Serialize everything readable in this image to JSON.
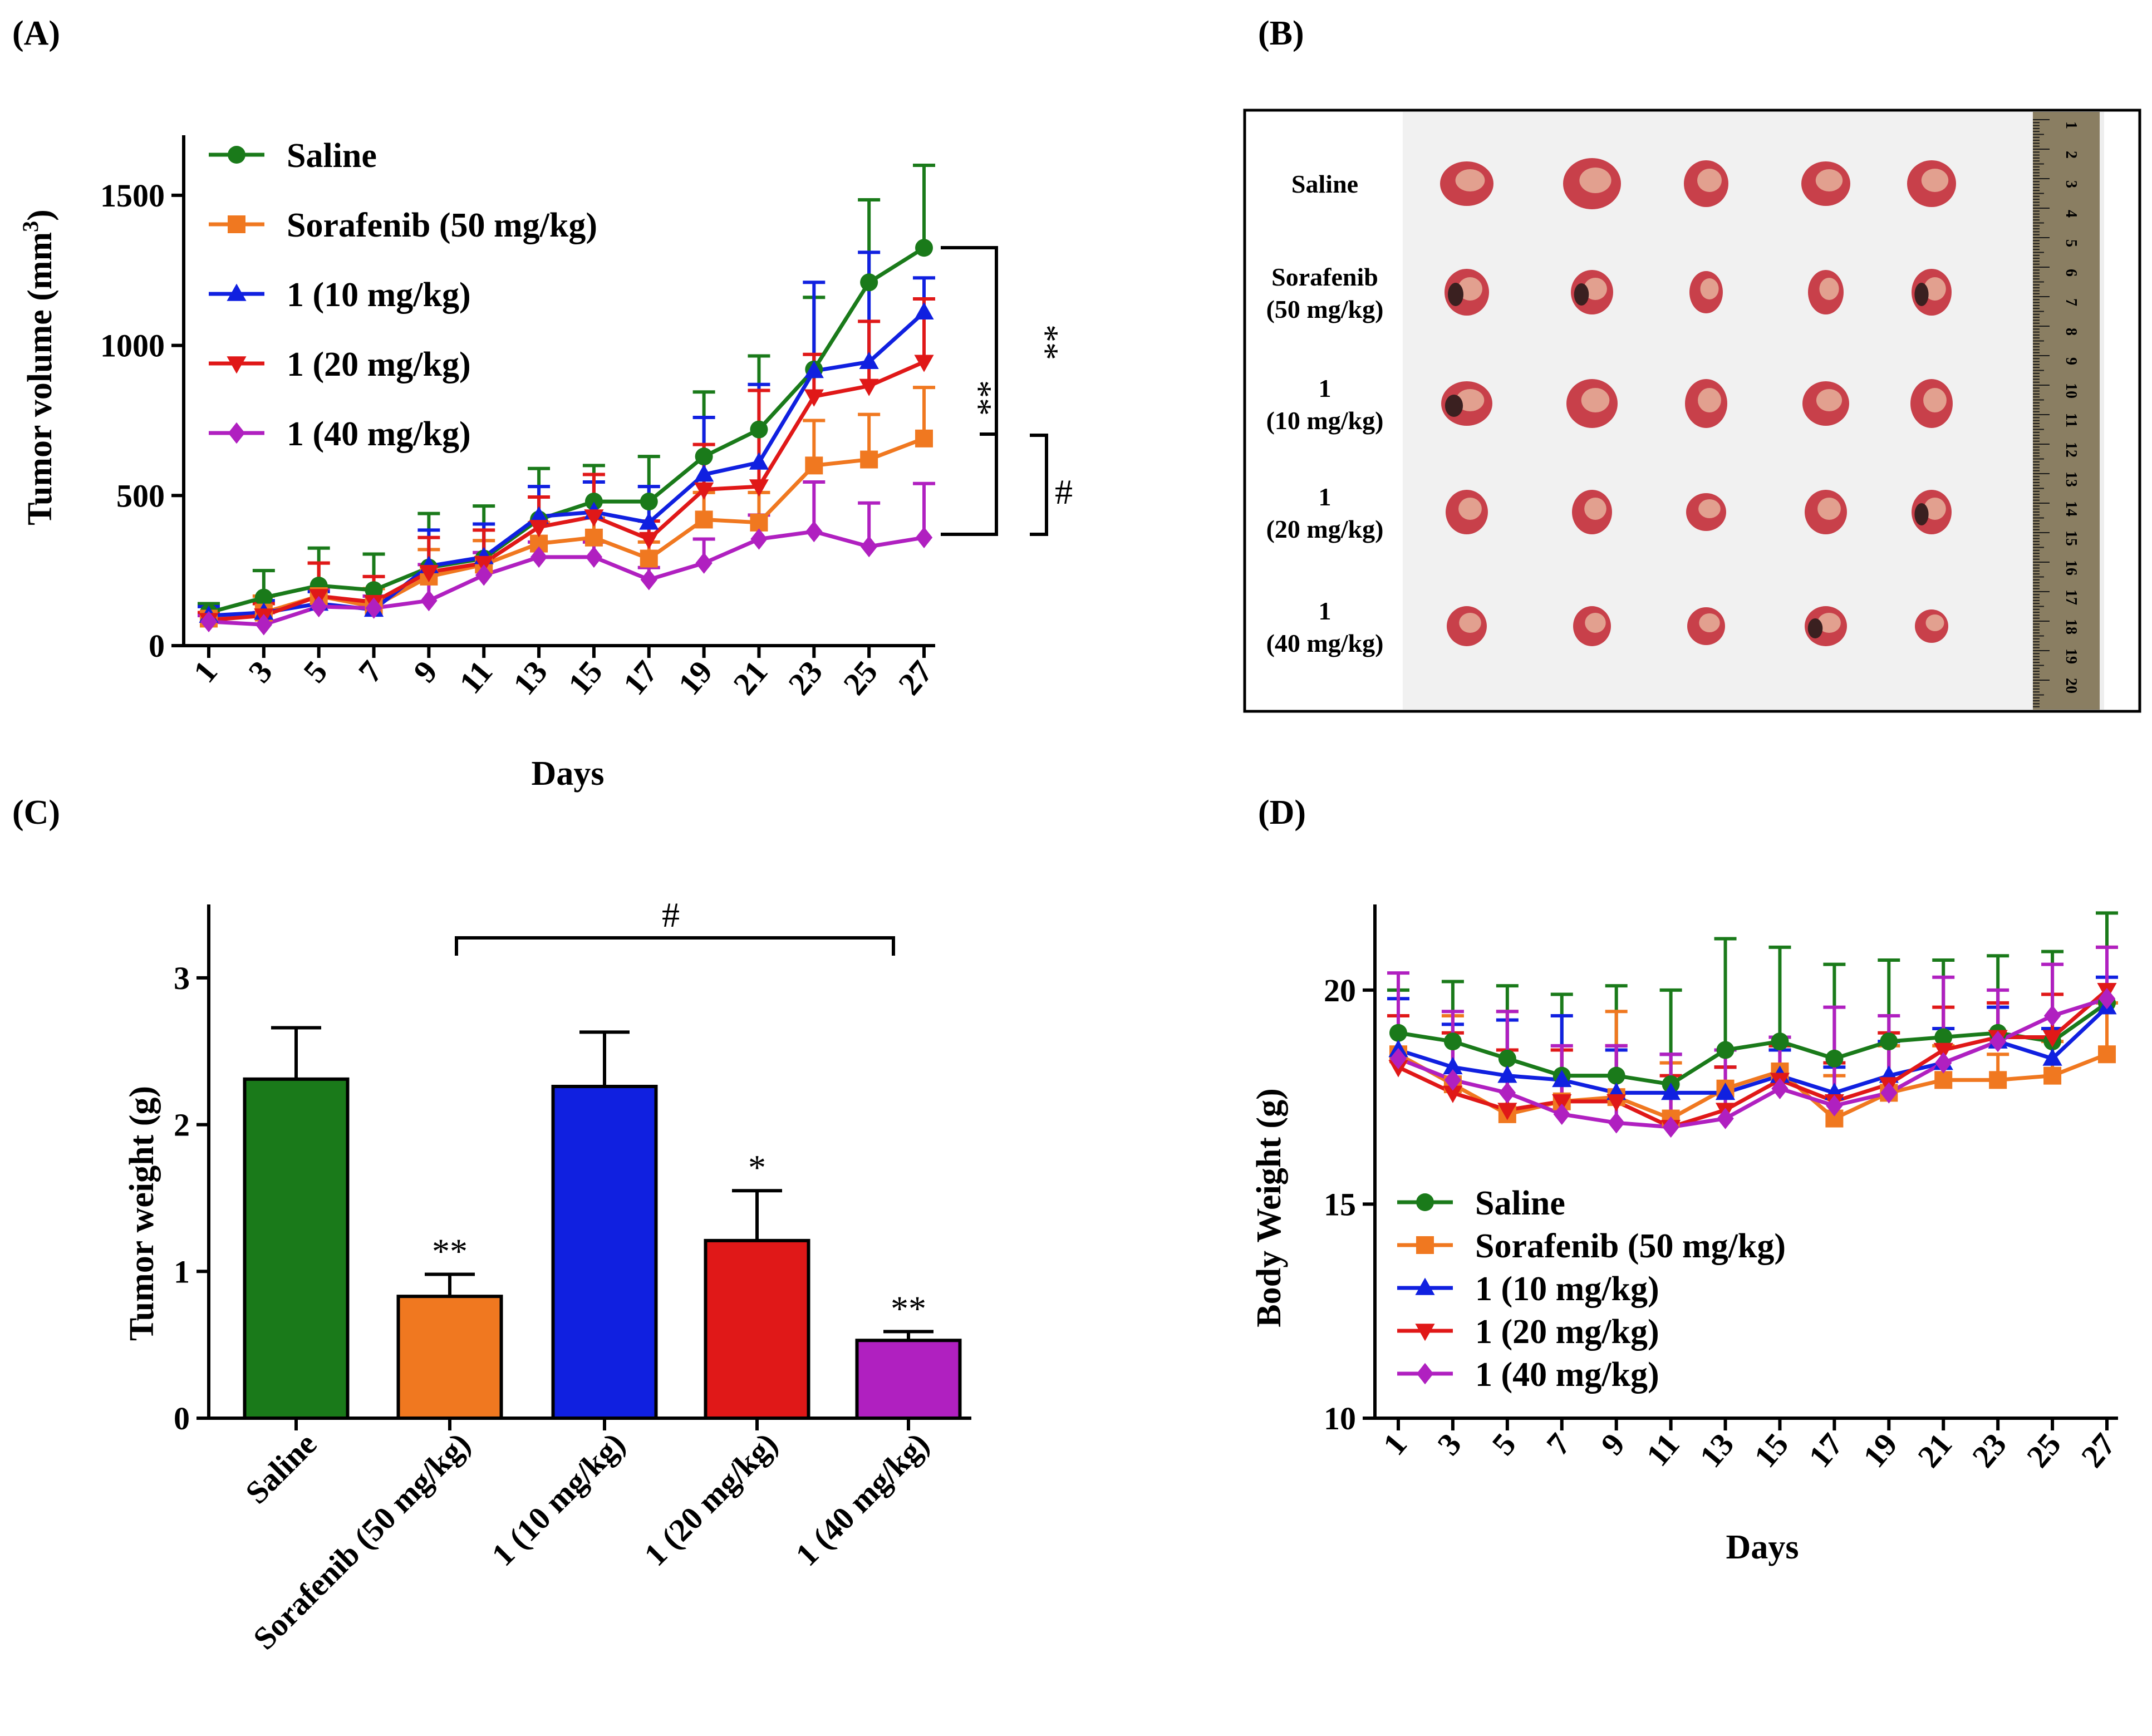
{
  "panels": {
    "a": "(A)",
    "b": "(B)",
    "c": "(C)",
    "d": "(D)"
  },
  "legend": [
    {
      "name": "Saline",
      "color": "#1a7a1a",
      "marker": "circle"
    },
    {
      "name": "Sorafenib (50 mg/kg)",
      "color": "#f07820",
      "marker": "square"
    },
    {
      "name": "1 (10 mg/kg)",
      "color": "#1020e0",
      "marker": "triangle-up"
    },
    {
      "name": "1 (20 mg/kg)",
      "color": "#e01818",
      "marker": "triangle-down"
    },
    {
      "name": "1 (40 mg/kg)",
      "color": "#b020c0",
      "marker": "diamond"
    }
  ],
  "photo": {
    "row_labels": [
      [
        "Saline"
      ],
      [
        "Sorafenib",
        "(50 mg/kg)"
      ],
      [
        "1",
        "(10 mg/kg)"
      ],
      [
        "1",
        "(20 mg/kg)"
      ],
      [
        "1",
        "(40 mg/kg)"
      ]
    ],
    "ruler_numbers": [
      "1",
      "2",
      "3",
      "4",
      "5",
      "6",
      "7",
      "8",
      "9",
      "10",
      "11",
      "12",
      "13",
      "14",
      "15",
      "16",
      "17",
      "18",
      "19",
      "20"
    ]
  },
  "chart_data": [
    {
      "id": "A",
      "type": "line",
      "xlabel": "Days",
      "ylabel": "Tumor volume (mm",
      "ylabel_sup": "3",
      "ylabel_end": ")",
      "ylim": [
        0,
        1700
      ],
      "yticks": [
        0,
        500,
        1000,
        1500
      ],
      "x": [
        1,
        3,
        5,
        7,
        9,
        11,
        13,
        15,
        17,
        19,
        21,
        23,
        25,
        27
      ],
      "series": [
        {
          "name": "Saline",
          "values": [
            110,
            160,
            200,
            185,
            260,
            290,
            420,
            480,
            480,
            630,
            720,
            920,
            1210,
            1325
          ],
          "errors": [
            30,
            90,
            125,
            120,
            180,
            175,
            170,
            120,
            150,
            215,
            245,
            240,
            275,
            275
          ]
        },
        {
          "name": "Sorafenib (50 mg/kg)",
          "values": [
            90,
            110,
            165,
            130,
            230,
            270,
            340,
            360,
            290,
            420,
            410,
            600,
            620,
            690
          ],
          "errors": [
            20,
            55,
            110,
            60,
            90,
            80,
            70,
            65,
            55,
            90,
            100,
            150,
            150,
            170
          ]
        },
        {
          "name": "1 (10 mg/kg)",
          "values": [
            100,
            110,
            140,
            120,
            265,
            295,
            430,
            445,
            410,
            570,
            610,
            915,
            945,
            1110
          ],
          "errors": [
            30,
            40,
            40,
            30,
            120,
            110,
            100,
            100,
            120,
            190,
            260,
            295,
            365,
            115
          ]
        },
        {
          "name": "1 (20 mg/kg)",
          "values": [
            85,
            100,
            165,
            145,
            245,
            275,
            395,
            430,
            355,
            520,
            530,
            830,
            865,
            945
          ],
          "errors": [
            25,
            40,
            110,
            85,
            115,
            110,
            100,
            140,
            60,
            150,
            320,
            140,
            215,
            210
          ]
        },
        {
          "name": "1 (40 mg/kg)",
          "values": [
            80,
            70,
            130,
            125,
            150,
            235,
            295,
            295,
            220,
            275,
            355,
            380,
            330,
            360
          ],
          "errors": [
            20,
            40,
            60,
            40,
            120,
            75,
            50,
            50,
            40,
            80,
            80,
            165,
            145,
            180
          ]
        }
      ],
      "annotations": {
        "sig_a": "**",
        "sig_b": "**",
        "sig_c": "#"
      }
    },
    {
      "id": "C",
      "type": "bar",
      "ylabel": "Tumor weight (g)",
      "ylim": [
        0,
        3.5
      ],
      "yticks": [
        0,
        1,
        2,
        3
      ],
      "categories": [
        "Saline",
        "Sorafenib (50 mg/kg)",
        "1 (10 mg/kg)",
        "1 (20 mg/kg)",
        "1 (40 mg/kg)"
      ],
      "values": [
        2.31,
        0.83,
        2.26,
        1.21,
        0.53
      ],
      "errors": [
        0.35,
        0.15,
        0.37,
        0.34,
        0.06
      ],
      "significance": [
        "",
        "**",
        "",
        "*",
        "**"
      ],
      "bracket_label": "#"
    },
    {
      "id": "D",
      "type": "line",
      "xlabel": "Days",
      "ylabel": "Body Weight (g)",
      "ylim": [
        10,
        22
      ],
      "yticks": [
        10,
        15,
        20
      ],
      "x": [
        1,
        3,
        5,
        7,
        9,
        11,
        13,
        15,
        17,
        19,
        21,
        23,
        25,
        27
      ],
      "series": [
        {
          "name": "Saline",
          "values": [
            19.0,
            18.8,
            18.4,
            18.0,
            18.0,
            17.8,
            18.6,
            18.8,
            18.4,
            18.8,
            18.9,
            19.0,
            18.8,
            19.7
          ],
          "errors": [
            1.0,
            1.4,
            1.7,
            1.9,
            2.1,
            2.2,
            2.6,
            2.2,
            2.2,
            1.9,
            1.8,
            1.8,
            2.1,
            2.1
          ]
        },
        {
          "name": "Sorafenib (50 mg/kg)",
          "values": [
            18.5,
            17.8,
            17.1,
            17.4,
            17.5,
            17.0,
            17.7,
            18.1,
            17.0,
            17.6,
            17.9,
            17.9,
            18.0,
            18.5
          ],
          "errors": [
            0.9,
            1.6,
            2.4,
            1.2,
            2.0,
            1.3,
            0.5,
            0.8,
            1.0,
            1.1,
            0.8,
            0.6,
            0.8,
            1.2
          ]
        },
        {
          "name": "1 (10 mg/kg)",
          "values": [
            18.6,
            18.2,
            18.0,
            17.9,
            17.6,
            17.6,
            17.6,
            18.0,
            17.6,
            18.0,
            18.3,
            18.8,
            18.4,
            19.6
          ],
          "errors": [
            1.2,
            1.0,
            1.3,
            1.5,
            1.0,
            0.9,
            0.6,
            0.6,
            0.6,
            0.8,
            0.8,
            0.8,
            0.7,
            0.7
          ]
        },
        {
          "name": "1 (20 mg/kg)",
          "values": [
            18.2,
            17.6,
            17.2,
            17.4,
            17.4,
            16.8,
            17.2,
            17.9,
            17.4,
            17.8,
            18.6,
            18.9,
            18.9,
            20.0
          ],
          "errors": [
            1.2,
            1.4,
            1.4,
            1.2,
            1.3,
            1.2,
            1.0,
            0.8,
            0.9,
            1.2,
            1.0,
            0.8,
            1.0,
            1.0
          ]
        },
        {
          "name": "1 (40 mg/kg)",
          "values": [
            18.4,
            17.9,
            17.6,
            17.1,
            16.9,
            16.8,
            17.0,
            17.7,
            17.3,
            17.6,
            18.3,
            18.8,
            19.4,
            19.8
          ],
          "errors": [
            2.0,
            1.6,
            1.9,
            1.6,
            1.8,
            1.7,
            1.6,
            1.2,
            2.3,
            1.8,
            2.0,
            1.2,
            1.2,
            1.2
          ]
        }
      ]
    }
  ]
}
